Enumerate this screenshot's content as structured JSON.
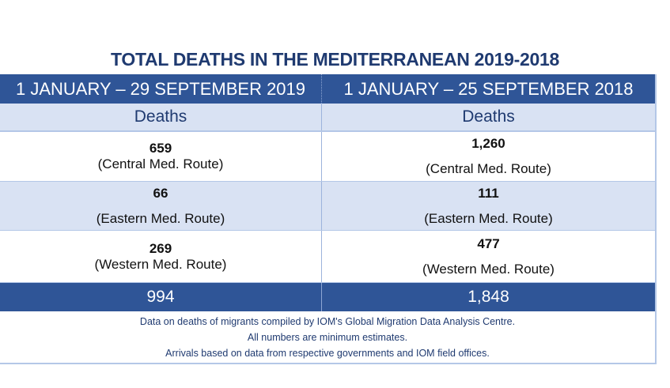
{
  "title": "TOTAL DEATHS IN THE MEDITERRANEAN 2019-2018",
  "columns": [
    {
      "period": "1 JANUARY – 29 SEPTEMBER 2019",
      "subheader": "Deaths"
    },
    {
      "period": "1 JANUARY – 25 SEPTEMBER 2018",
      "subheader": "Deaths"
    }
  ],
  "rows": [
    {
      "cells": [
        {
          "value": "659",
          "route": "(Central Med. Route)"
        },
        {
          "value": "1,260",
          "route": "(Central Med. Route)"
        }
      ]
    },
    {
      "cells": [
        {
          "value": "66",
          "route": "(Eastern Med. Route)"
        },
        {
          "value": "111",
          "route": "(Eastern Med. Route)"
        }
      ]
    },
    {
      "cells": [
        {
          "value": "269",
          "route": "(Western Med. Route)"
        },
        {
          "value": "477",
          "route": "(Western Med. Route)"
        }
      ]
    }
  ],
  "totals": [
    "994",
    "1,848"
  ],
  "footnotes": [
    "Data on deaths of migrants compiled by IOM's Global Migration Data Analysis Centre.",
    "All numbers are minimum estimates.",
    "Arrivals based on data from respective governments and IOM field offices."
  ],
  "colors": {
    "header_blue": "#2f5597",
    "light_row": "#d9e2f3",
    "title_navy": "#1f3a70"
  },
  "chart_data": {
    "type": "table",
    "title": "TOTAL DEATHS IN THE MEDITERRANEAN 2019-2018",
    "categories": [
      "Central Med. Route",
      "Eastern Med. Route",
      "Western Med. Route",
      "Total"
    ],
    "series": [
      {
        "name": "1 JANUARY – 29 SEPTEMBER 2019",
        "values": [
          659,
          66,
          269,
          994
        ]
      },
      {
        "name": "1 JANUARY – 25 SEPTEMBER 2018",
        "values": [
          1260,
          111,
          477,
          1848
        ]
      }
    ]
  }
}
